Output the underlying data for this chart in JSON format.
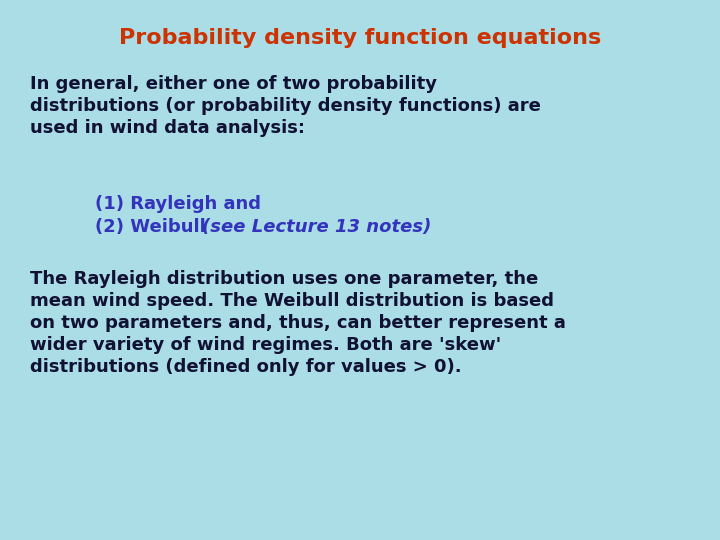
{
  "background_color": "#aadde6",
  "title": "Probability density function equations",
  "title_color": "#cc3300",
  "title_fontsize": 16,
  "para1_line1": "In general, either one of two probability",
  "para1_line2": "distributions (or probability density functions) are",
  "para1_line3": "used in wind data analysis:",
  "para1_color": "#111133",
  "para1_fontsize": 13,
  "bullet1": "(1) Rayleigh and",
  "bullet2_normal": "(2) Weibull ",
  "bullet2_italic": "(see Lecture 13 notes)",
  "bullet_color": "#3333bb",
  "bullet_fontsize": 13,
  "para2_line1": "The Rayleigh distribution uses one parameter, the",
  "para2_line2": "mean wind speed. The Weibull distribution is based",
  "para2_line3": "on two parameters and, thus, can better represent a",
  "para2_line4": "wider variety of wind regimes. Both are 'skew'",
  "para2_line5": "distributions (defined only for values > 0).",
  "para2_color": "#111133",
  "para2_fontsize": 13,
  "fig_width": 7.2,
  "fig_height": 5.4,
  "dpi": 100
}
